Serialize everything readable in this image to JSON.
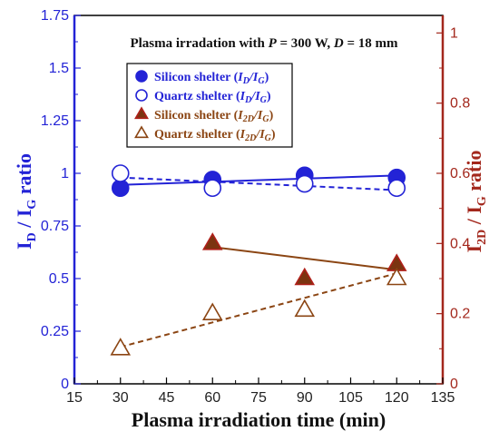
{
  "chart_data": {
    "type": "scatter",
    "title": "Plasma irradation with P = 300 W, D = 18 mm",
    "title_parts": [
      "Plasma irradation with ",
      "P",
      " = 300 W, ",
      "D",
      " = 18 mm"
    ],
    "xlabel": "Plasma irradiation time (min)",
    "ylabel_left": {
      "main": "I",
      "sub1": "D",
      "mid": " / I",
      "sub2": "G",
      "tail": " ratio"
    },
    "ylabel_right": {
      "main": "I",
      "sub1": "2D",
      "mid": " / I",
      "sub2": "G",
      "tail": " ratio"
    },
    "xlim": [
      15,
      135
    ],
    "xticks": [
      "15",
      "30",
      "45",
      "60",
      "75",
      "90",
      "105",
      "120",
      "135"
    ],
    "ylim_left": [
      0,
      1.75
    ],
    "yticks_left": [
      "0",
      "0.25",
      "0.5",
      "0.75",
      "1",
      "1.25",
      "1.5",
      "1.75"
    ],
    "ylim_right": [
      0,
      1.05
    ],
    "yticks_right": [
      "0",
      "0.2",
      "0.4",
      "0.6",
      "0.8",
      "1"
    ],
    "colors": {
      "blue": "#2323d6",
      "brown": "#8b4513",
      "right_axis": "#a3271c",
      "silicon_brown_fill": "#7b3410"
    },
    "legend": {
      "placement": "upper-center",
      "entries": [
        {
          "prefix": "Silicon shelter (",
          "italic": "I",
          "sub1": "D",
          "mid": "/",
          "italic2": "I",
          "sub2": "G",
          "suffix": ")"
        },
        {
          "prefix": "Quartz shelter (",
          "italic": "I",
          "sub1": "D",
          "mid": "/",
          "italic2": "I",
          "sub2": "G",
          "suffix": ")"
        },
        {
          "prefix": "Silicon shelter (",
          "italic": "I",
          "sub1": "2D",
          "mid": "/",
          "italic2": "I",
          "sub2": "G",
          "suffix": ")"
        },
        {
          "prefix": "Quartz shelter (",
          "italic": "I",
          "sub1": "2D",
          "mid": "/",
          "italic2": "I",
          "sub2": "G",
          "suffix": ")"
        }
      ]
    },
    "series": [
      {
        "name": "Silicon shelter (ID/IG)",
        "axis": "left",
        "marker": "circle-filled",
        "color": "#2323d6",
        "line": "solid",
        "x": [
          30,
          60,
          90,
          120
        ],
        "y": [
          0.93,
          0.97,
          0.99,
          0.98
        ]
      },
      {
        "name": "Quartz shelter (ID/IG)",
        "axis": "left",
        "marker": "circle-open",
        "color": "#2323d6",
        "line": "dashed",
        "x": [
          30,
          60,
          90,
          120
        ],
        "y": [
          1.0,
          0.93,
          0.95,
          0.93
        ]
      },
      {
        "name": "Silicon shelter (I2D/IG)",
        "axis": "right",
        "marker": "triangle-filled",
        "color": "#8b4513",
        "line": "solid",
        "x": [
          60,
          90,
          120
        ],
        "y": [
          0.4,
          0.3,
          0.34
        ]
      },
      {
        "name": "Quartz shelter (I2D/IG)",
        "axis": "right",
        "marker": "triangle-open",
        "color": "#8b4513",
        "line": "dashed",
        "x": [
          30,
          60,
          90,
          120
        ],
        "y": [
          0.1,
          0.2,
          0.21,
          0.3
        ]
      }
    ],
    "trendlines": [
      {
        "series": 0,
        "axis": "left",
        "x": [
          30,
          120
        ],
        "y": [
          0.945,
          0.99
        ],
        "style": "solid",
        "color": "#2323d6"
      },
      {
        "series": 1,
        "axis": "left",
        "x": [
          30,
          120
        ],
        "y": [
          0.98,
          0.92
        ],
        "style": "dashed",
        "color": "#2323d6"
      },
      {
        "series": 2,
        "axis": "right",
        "x": [
          60,
          120
        ],
        "y": [
          0.39,
          0.325
        ],
        "style": "solid",
        "color": "#8b4513"
      },
      {
        "series": 3,
        "axis": "right",
        "x": [
          30,
          120
        ],
        "y": [
          0.105,
          0.315
        ],
        "style": "dashed",
        "color": "#8b4513"
      }
    ]
  }
}
